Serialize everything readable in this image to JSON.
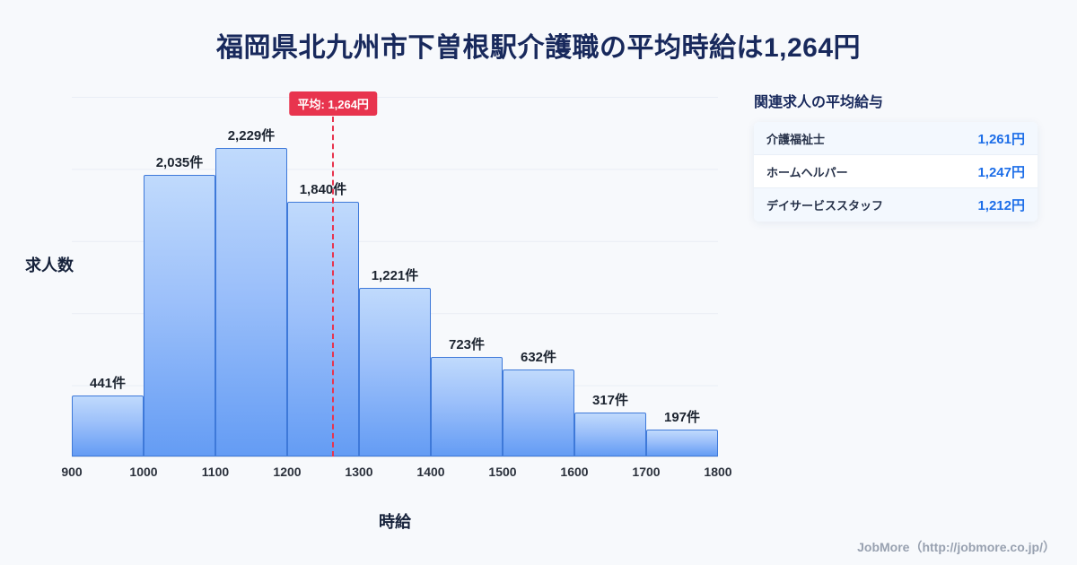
{
  "title": "福岡県北九州市下曽根駅介護職の平均時給は1,264円",
  "chart_data": {
    "type": "bar",
    "bin_edges": [
      900,
      1000,
      1100,
      1200,
      1300,
      1400,
      1500,
      1600,
      1700,
      1800
    ],
    "values": [
      441,
      2035,
      2229,
      1840,
      1221,
      723,
      632,
      317,
      197
    ],
    "bar_labels": [
      "441件",
      "2,035件",
      "2,229件",
      "1,840件",
      "1,221件",
      "723件",
      "632件",
      "317件",
      "197件"
    ],
    "title": "福岡県北九州市下曽根駅介護職の平均時給は1,264円",
    "xlabel": "時給",
    "ylabel": "求人数",
    "ylim": [
      0,
      2600
    ],
    "grid": true,
    "average": 1264,
    "average_label": "平均: 1,264円"
  },
  "side_panel": {
    "heading": "関連求人の平均給与",
    "rows": [
      {
        "label": "介護福祉士",
        "value": "1,261円"
      },
      {
        "label": "ホームヘルパー",
        "value": "1,247円"
      },
      {
        "label": "デイサービススタッフ",
        "value": "1,212円"
      }
    ]
  },
  "footer": {
    "credit": "JobMore（http://jobmore.co.jp/）"
  },
  "colors": {
    "background": "#f7f9fc",
    "title_navy": "#18295c",
    "bar_fill_top": "#c0dafc",
    "bar_fill_bottom": "#649cf4",
    "bar_border": "#3e79d9",
    "accent_red": "#e8344e",
    "salary_value_blue": "#1d6ee8",
    "footer_gray": "#98a1b0"
  }
}
